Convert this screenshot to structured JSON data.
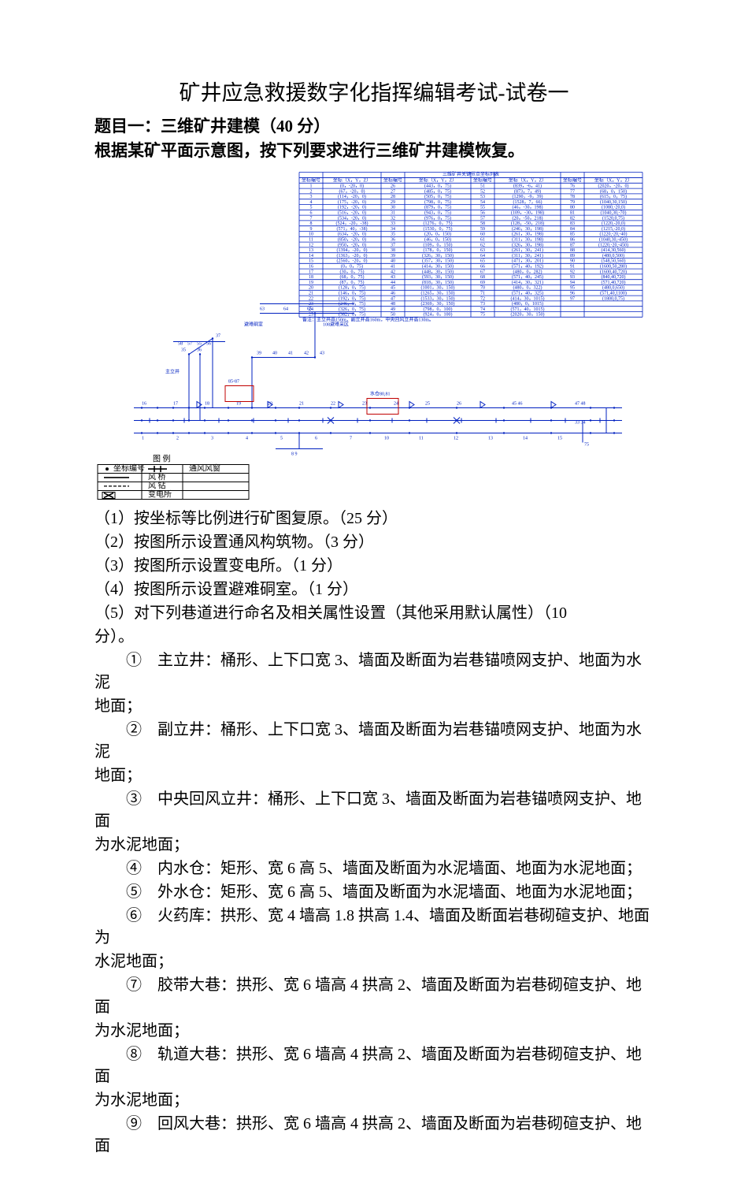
{
  "title": "矿井应急救援数字化指挥编辑考试-试卷一",
  "heading1": "题目一：三维矿井建模（40 分）",
  "heading2": "根据某矿平面示意图，按下列要求进行三维矿井建模恢复。",
  "figure": {
    "background": "#ffffff",
    "line_color": "#0020c0",
    "accent_green": "#00a000",
    "accent_red": "#c00000",
    "title": "三维矿井关键节点坐标列表",
    "note": "备注：主立井高150m，副立井高160m，中央回风立井高130m。",
    "header_cols": [
      "坐标编号",
      "坐标（X，Y，Z）",
      "坐标编号",
      "坐标（X，Y，Z）",
      "坐标编号",
      "坐标（X，Y，Z）",
      "坐标编号",
      "坐标（X，Y，Z）"
    ],
    "rows": [
      [
        "1",
        "(0，-20，0)",
        "26",
        "(443，0，75)",
        "51",
        "(839，-6，41)",
        "76",
        "(2020，-20，0)"
      ],
      [
        "2",
        "(67，-20，0)",
        "27",
        "(485，0，75)",
        "52",
        "(873，7，49)",
        "77",
        "(68，0，150)"
      ],
      [
        "3",
        "(114，-20，0)",
        "28",
        "(505，0，75)",
        "53",
        "(1290，-9，39)",
        "78",
        "(615，0，75)"
      ],
      [
        "4",
        "(175，-20，0)",
        "29",
        "(798，0，75)",
        "54",
        "(1528，7，66)",
        "79",
        "(1040,30,150)"
      ],
      [
        "5",
        "(192，-20，0)",
        "30",
        "(879，0，75)",
        "55",
        "(46，-30，198)",
        "80",
        "(1080,-20,0)"
      ],
      [
        "6",
        "(516，-20，0)",
        "31",
        "(943，0，75)",
        "56",
        "(109，-30，198)",
        "81",
        "(1040,30,-70)"
      ],
      [
        "7",
        "(534，-20，0)",
        "32",
        "(976，0，75)",
        "57",
        "(20，-50，218)",
        "82",
        "(1520,0,75)"
      ],
      [
        "8",
        "(524，-20，-38)",
        "33",
        "(1276，0，75)",
        "58",
        "(128，-50，218)",
        "83",
        "(1220,-20,0)"
      ],
      [
        "9",
        "(571，40，-38)",
        "34",
        "(1530，0，75)",
        "59",
        "(246，30，198)",
        "84",
        "(1215,-20,0)"
      ],
      [
        "10",
        "(634，-20，0)",
        "35",
        "(20，0，150)",
        "60",
        "(261，30，198)",
        "85",
        "(1220,-20,-40)"
      ],
      [
        "11",
        "(850，-20，0)",
        "36",
        "(46，0，150)",
        "61",
        "(311，30，198)",
        "86",
        "(1040,30,-450)"
      ],
      [
        "12",
        "(950，-20，0)",
        "37",
        "(109，0，150)",
        "62",
        "(326，30，198)",
        "87",
        "(1220,-20,-450)"
      ],
      [
        "13",
        "(1394，-20，0)",
        "38",
        "(178，0，150)",
        "63",
        "(261，30，241)",
        "88",
        "(414,30,560)"
      ],
      [
        "14",
        "(1363，-20，0)",
        "39",
        "(326，30，150)",
        "64",
        "(311，30，241)",
        "89",
        "(480,0,500)"
      ],
      [
        "15",
        "(2560，-20，0)",
        "40",
        "(357，30，150)",
        "65",
        "(471，30，201)",
        "90",
        "(548,50,560)"
      ],
      [
        "16",
        "(0，0，75)",
        "41",
        "(414，30，150)",
        "66",
        "(571，40，192)",
        "91",
        "(1600,50,280)"
      ],
      [
        "17",
        "(30，0，75)",
        "42",
        "(448，30，150)",
        "67",
        "(480，0，282)",
        "92",
        "(1600,40,720)"
      ],
      [
        "18",
        "(68，0，75)",
        "43",
        "(593，30，150)",
        "68",
        "(571，40，245)",
        "93",
        "(840,40,720)"
      ],
      [
        "19",
        "(87，0，75)",
        "44",
        "(818，30，150)",
        "69",
        "(414，30，321)",
        "94",
        "(571,40,720)"
      ],
      [
        "20",
        "(128，0，75)",
        "45",
        "(1001，30，150)",
        "70",
        "(480，0，322)",
        "95",
        "(480,0,650)"
      ],
      [
        "21",
        "(146，0，75)",
        "46",
        "(1265，30，150)",
        "71",
        "(571，40，325)",
        "96",
        "(571,40,1100)"
      ],
      [
        "22",
        "(192，0，75)",
        "47",
        "(1533，30，150)",
        "72",
        "(414，30，1015)",
        "97",
        "(1800,0,75)"
      ],
      [
        "23",
        "(246，0，75)",
        "48",
        "(2369，30，150)",
        "73",
        "(480，0，1015)",
        "",
        " "
      ],
      [
        "24",
        "(326，0，75)",
        "49",
        "(798，0，100)",
        "74",
        "(571，40，1015)",
        "",
        " "
      ],
      [
        "25",
        "(382，0，75)",
        "50",
        "(924，0，100)",
        "75",
        "(2020，30，150)",
        "",
        " "
      ]
    ],
    "legend": {
      "title": "图    例",
      "items": [
        "坐标编号  —— 通风风窗",
        "风  桥",
        "风  钻",
        "× 变电所"
      ]
    }
  },
  "q1": "（1）按坐标等比例进行矿图复原。（25 分）",
  "q2": "（2）按图所示设置通风构筑物。（3 分）",
  "q3": "（3）按图所示设置变电所。（1 分）",
  "q4": "（4）按图所示设置避难硐室。（1 分）",
  "q5a": "（5）对下列巷道进行命名及相关属性设置（其他采用默认属性）（10",
  "q5b": "分）。",
  "i1": "①　主立井：桶形、上下口宽 3、墙面及断面为岩巷锚喷网支护、地面为水泥",
  "i1b": "地面；",
  "i2": "②　副立井：桶形、上下口宽 3、墙面及断面为岩巷锚喷网支护、地面为水泥",
  "i2b": "地面；",
  "i3": "③　中央回风立井：桶形、上下口宽 3、墙面及断面为岩巷锚喷网支护、地面",
  "i3b": "为水泥地面；",
  "i4": "④　内水仓：矩形、宽 6 高 5、墙面及断面为水泥墙面、地面为水泥地面；",
  "i5": "⑤　外水仓：矩形、宽 6 高 5、墙面及断面为水泥墙面、地面为水泥地面；",
  "i6": "⑥　火药库：拱形、宽 4 墙高 1.8 拱高 1.4、墙面及断面岩巷砌碹支护、地面为",
  "i6b": "水泥地面；",
  "i7": "⑦　胶带大巷：拱形、宽 6 墙高 4 拱高 2、墙面及断面为岩巷砌碹支护、地面",
  "i7b": "为水泥地面；",
  "i8": "⑧　轨道大巷：拱形、宽 6 墙高 4 拱高 2、墙面及断面为岩巷砌碹支护、地面",
  "i8b": "为水泥地面；",
  "i9": "⑨　回风大巷：拱形、宽 6 墙高 4 拱高 2、墙面及断面为岩巷砌碹支护、地面"
}
